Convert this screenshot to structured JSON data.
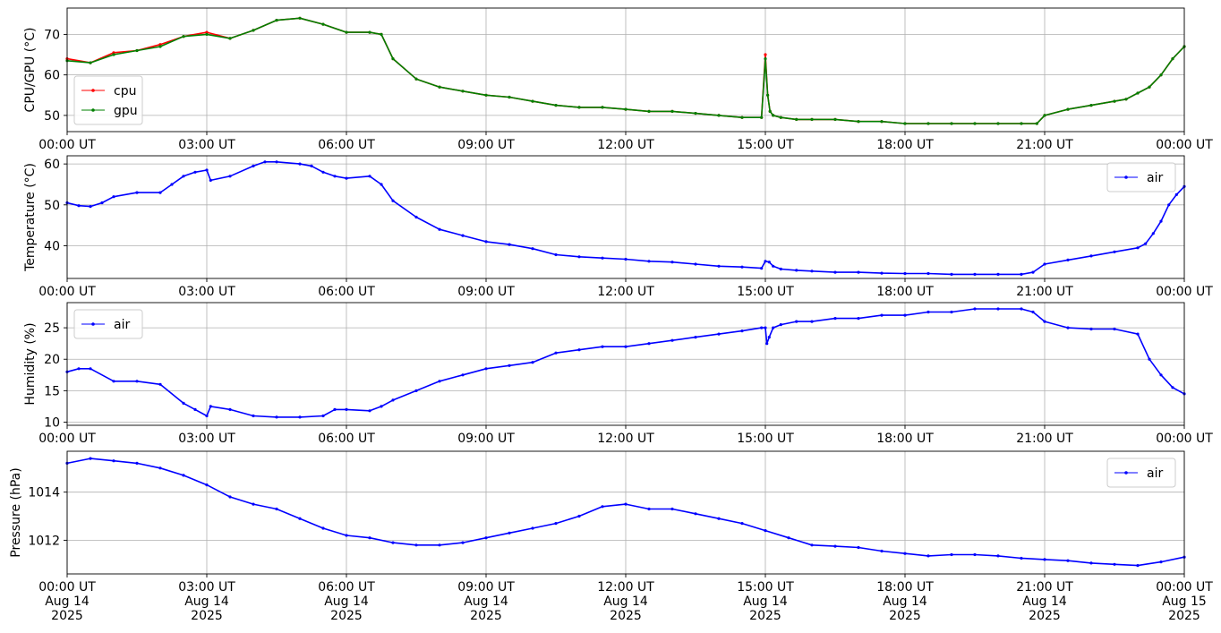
{
  "chart_data": [
    {
      "type": "line",
      "ylabel": "CPU/GPU (°C)",
      "ylim": [
        46,
        76.5
      ],
      "yticks": [
        50,
        60,
        70
      ],
      "x_range": [
        "2025-08-14T00:00Z",
        "2025-08-15T00:00Z"
      ],
      "xtick_labels": [
        "00:00 UT",
        "03:00 UT",
        "06:00 UT",
        "09:00 UT",
        "12:00 UT",
        "15:00 UT",
        "18:00 UT",
        "21:00 UT",
        "00:00 UT"
      ],
      "grid": true,
      "legend_location": "lower-left",
      "series": [
        {
          "name": "cpu",
          "color": "#ff0000",
          "x": [
            "00:00",
            "00:30",
            "01:00",
            "01:30",
            "02:00",
            "02:30",
            "03:00",
            "03:30",
            "04:00",
            "04:30",
            "05:00",
            "05:30",
            "06:00",
            "06:30",
            "06:45",
            "07:00",
            "07:30",
            "08:00",
            "08:30",
            "09:00",
            "09:30",
            "10:00",
            "10:30",
            "11:00",
            "11:30",
            "12:00",
            "12:30",
            "13:00",
            "13:30",
            "14:00",
            "14:30",
            "14:55",
            "15:00",
            "15:03",
            "15:06",
            "15:10",
            "15:20",
            "15:40",
            "16:00",
            "16:30",
            "17:00",
            "17:30",
            "18:00",
            "18:30",
            "19:00",
            "19:30",
            "20:00",
            "20:30",
            "20:50",
            "21:00",
            "21:30",
            "22:00",
            "22:30",
            "22:45",
            "23:00",
            "23:15",
            "23:30",
            "23:45",
            "24:00"
          ],
          "y": [
            64,
            63,
            65.5,
            66,
            67.5,
            69.5,
            70.5,
            69,
            71,
            73.5,
            74,
            72.5,
            70.5,
            70.5,
            70,
            64,
            59,
            57,
            56,
            55,
            54.5,
            53.5,
            52.5,
            52,
            52,
            51.5,
            51,
            51,
            50.5,
            50,
            49.5,
            49.5,
            65,
            55,
            51,
            50,
            49.5,
            49,
            49,
            49,
            48.5,
            48.5,
            48,
            48,
            48,
            48,
            48,
            48,
            48,
            50,
            51.5,
            52.5,
            53.5,
            54,
            55.5,
            57,
            60,
            64,
            67
          ]
        },
        {
          "name": "gpu",
          "color": "#008000",
          "x": [
            "00:00",
            "00:30",
            "01:00",
            "01:30",
            "02:00",
            "02:30",
            "03:00",
            "03:30",
            "04:00",
            "04:30",
            "05:00",
            "05:30",
            "06:00",
            "06:30",
            "06:45",
            "07:00",
            "07:30",
            "08:00",
            "08:30",
            "09:00",
            "09:30",
            "10:00",
            "10:30",
            "11:00",
            "11:30",
            "12:00",
            "12:30",
            "13:00",
            "13:30",
            "14:00",
            "14:30",
            "14:55",
            "15:00",
            "15:03",
            "15:06",
            "15:10",
            "15:20",
            "15:40",
            "16:00",
            "16:30",
            "17:00",
            "17:30",
            "18:00",
            "18:30",
            "19:00",
            "19:30",
            "20:00",
            "20:30",
            "20:50",
            "21:00",
            "21:30",
            "22:00",
            "22:30",
            "22:45",
            "23:00",
            "23:15",
            "23:30",
            "23:45",
            "24:00"
          ],
          "y": [
            63.5,
            63,
            65,
            66,
            67,
            69.5,
            70,
            69,
            71,
            73.5,
            74,
            72.5,
            70.5,
            70.5,
            70,
            64,
            59,
            57,
            56,
            55,
            54.5,
            53.5,
            52.5,
            52,
            52,
            51.5,
            51,
            51,
            50.5,
            50,
            49.5,
            49.5,
            64,
            55,
            51,
            50,
            49.5,
            49,
            49,
            49,
            48.5,
            48.5,
            48,
            48,
            48,
            48,
            48,
            48,
            48,
            50,
            51.5,
            52.5,
            53.5,
            54,
            55.5,
            57,
            60,
            64,
            67
          ]
        }
      ]
    },
    {
      "type": "line",
      "ylabel": "Temperature (°C)",
      "ylim": [
        32,
        62
      ],
      "yticks": [
        40,
        50,
        60
      ],
      "x_range": [
        "2025-08-14T00:00Z",
        "2025-08-15T00:00Z"
      ],
      "xtick_labels": [
        "00:00 UT",
        "03:00 UT",
        "06:00 UT",
        "09:00 UT",
        "12:00 UT",
        "15:00 UT",
        "18:00 UT",
        "21:00 UT",
        "00:00 UT"
      ],
      "grid": true,
      "legend_location": "upper-right",
      "series": [
        {
          "name": "air",
          "color": "#0000ff",
          "x": [
            "00:00",
            "00:15",
            "00:30",
            "00:45",
            "01:00",
            "01:30",
            "02:00",
            "02:15",
            "02:30",
            "02:45",
            "03:00",
            "03:05",
            "03:30",
            "04:00",
            "04:15",
            "04:30",
            "05:00",
            "05:15",
            "05:30",
            "05:45",
            "06:00",
            "06:30",
            "06:45",
            "07:00",
            "07:30",
            "08:00",
            "08:30",
            "09:00",
            "09:30",
            "10:00",
            "10:30",
            "11:00",
            "11:30",
            "12:00",
            "12:30",
            "13:00",
            "13:30",
            "14:00",
            "14:30",
            "14:55",
            "15:00",
            "15:05",
            "15:10",
            "15:20",
            "15:40",
            "16:00",
            "16:30",
            "17:00",
            "17:30",
            "18:00",
            "18:30",
            "19:00",
            "19:30",
            "20:00",
            "20:30",
            "20:45",
            "21:00",
            "21:30",
            "22:00",
            "22:30",
            "23:00",
            "23:10",
            "23:20",
            "23:30",
            "23:40",
            "23:50",
            "24:00"
          ],
          "y": [
            50.5,
            49.8,
            49.6,
            50.5,
            52,
            53,
            53,
            55,
            57,
            58,
            58.5,
            56,
            57,
            59.5,
            60.5,
            60.5,
            60,
            59.5,
            58,
            57,
            56.5,
            57,
            55,
            51,
            47,
            44,
            42.5,
            41,
            40.3,
            39.3,
            37.8,
            37.3,
            37,
            36.7,
            36.2,
            36,
            35.5,
            35,
            34.8,
            34.5,
            36.2,
            36,
            35,
            34.3,
            34,
            33.8,
            33.5,
            33.5,
            33.3,
            33.2,
            33.2,
            33,
            33,
            33,
            33,
            33.5,
            35.5,
            36.5,
            37.5,
            38.5,
            39.5,
            40.5,
            43,
            46,
            50,
            52.5,
            54.5
          ]
        }
      ]
    },
    {
      "type": "line",
      "ylabel": "Humidity (%)",
      "ylim": [
        9.5,
        29
      ],
      "yticks": [
        10,
        15,
        20,
        25
      ],
      "x_range": [
        "2025-08-14T00:00Z",
        "2025-08-15T00:00Z"
      ],
      "xtick_labels": [
        "00:00 UT",
        "03:00 UT",
        "06:00 UT",
        "09:00 UT",
        "12:00 UT",
        "15:00 UT",
        "18:00 UT",
        "21:00 UT",
        "00:00 UT"
      ],
      "grid": true,
      "legend_location": "upper-left",
      "series": [
        {
          "name": "air",
          "color": "#0000ff",
          "x": [
            "00:00",
            "00:15",
            "00:30",
            "01:00",
            "01:30",
            "02:00",
            "02:30",
            "02:45",
            "03:00",
            "03:05",
            "03:30",
            "04:00",
            "04:30",
            "05:00",
            "05:30",
            "05:45",
            "06:00",
            "06:30",
            "06:45",
            "07:00",
            "07:30",
            "08:00",
            "08:30",
            "09:00",
            "09:30",
            "10:00",
            "10:30",
            "11:00",
            "11:30",
            "12:00",
            "12:30",
            "13:00",
            "13:30",
            "14:00",
            "14:30",
            "14:55",
            "15:00",
            "15:02",
            "15:05",
            "15:10",
            "15:20",
            "15:40",
            "16:00",
            "16:30",
            "17:00",
            "17:30",
            "18:00",
            "18:30",
            "19:00",
            "19:30",
            "20:00",
            "20:30",
            "20:45",
            "21:00",
            "21:30",
            "22:00",
            "22:30",
            "23:00",
            "23:15",
            "23:30",
            "23:45",
            "24:00"
          ],
          "y": [
            18,
            18.5,
            18.5,
            16.5,
            16.5,
            16,
            13,
            12,
            11,
            12.5,
            12,
            11,
            10.8,
            10.8,
            11,
            12,
            12,
            11.8,
            12.5,
            13.5,
            15,
            16.5,
            17.5,
            18.5,
            19,
            19.5,
            21,
            21.5,
            22,
            22,
            22.5,
            23,
            23.5,
            24,
            24.5,
            25,
            25,
            22.5,
            23.5,
            25,
            25.5,
            26,
            26,
            26.5,
            26.5,
            27,
            27,
            27.5,
            27.5,
            28,
            28,
            28,
            27.5,
            26,
            25,
            24.8,
            24.8,
            24,
            20,
            17.5,
            15.5,
            14.5
          ]
        }
      ]
    },
    {
      "type": "line",
      "ylabel": "Pressure (hPa)",
      "ylim": [
        1010.6,
        1015.7
      ],
      "yticks": [
        1012,
        1014
      ],
      "x_range": [
        "2025-08-14T00:00Z",
        "2025-08-15T00:00Z"
      ],
      "xtick_labels": [
        [
          "00:00 UT",
          "Aug 14",
          "2025"
        ],
        [
          "03:00 UT",
          "Aug 14",
          "2025"
        ],
        [
          "06:00 UT",
          "Aug 14",
          "2025"
        ],
        [
          "09:00 UT",
          "Aug 14",
          "2025"
        ],
        [
          "12:00 UT",
          "Aug 14",
          "2025"
        ],
        [
          "15:00 UT",
          "Aug 14",
          "2025"
        ],
        [
          "18:00 UT",
          "Aug 14",
          "2025"
        ],
        [
          "21:00 UT",
          "Aug 14",
          "2025"
        ],
        [
          "00:00 UT",
          "Aug 15",
          "2025"
        ]
      ],
      "grid": true,
      "legend_location": "upper-right",
      "series": [
        {
          "name": "air",
          "color": "#0000ff",
          "x": [
            "00:00",
            "00:30",
            "01:00",
            "01:30",
            "02:00",
            "02:30",
            "03:00",
            "03:30",
            "04:00",
            "04:30",
            "05:00",
            "05:30",
            "06:00",
            "06:30",
            "07:00",
            "07:30",
            "08:00",
            "08:30",
            "09:00",
            "09:30",
            "10:00",
            "10:30",
            "11:00",
            "11:30",
            "12:00",
            "12:30",
            "13:00",
            "13:30",
            "14:00",
            "14:30",
            "15:00",
            "15:30",
            "16:00",
            "16:30",
            "17:00",
            "17:30",
            "18:00",
            "18:30",
            "19:00",
            "19:30",
            "20:00",
            "20:30",
            "21:00",
            "21:30",
            "22:00",
            "22:30",
            "23:00",
            "23:30",
            "24:00"
          ],
          "y": [
            1015.2,
            1015.4,
            1015.3,
            1015.2,
            1015,
            1014.7,
            1014.3,
            1013.8,
            1013.5,
            1013.3,
            1012.9,
            1012.5,
            1012.2,
            1012.1,
            1011.9,
            1011.8,
            1011.8,
            1011.9,
            1012.1,
            1012.3,
            1012.5,
            1012.7,
            1013.0,
            1013.4,
            1013.5,
            1013.3,
            1013.3,
            1013.1,
            1012.9,
            1012.7,
            1012.4,
            1012.1,
            1011.8,
            1011.75,
            1011.7,
            1011.55,
            1011.45,
            1011.35,
            1011.4,
            1011.4,
            1011.35,
            1011.25,
            1011.2,
            1011.15,
            1011.05,
            1011.0,
            1010.95,
            1011.1,
            1011.3
          ]
        }
      ]
    }
  ]
}
